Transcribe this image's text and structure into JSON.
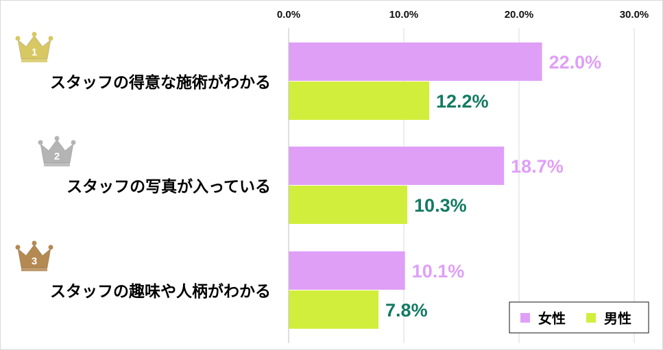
{
  "chart_data": {
    "type": "bar",
    "orientation": "horizontal",
    "categories": [
      "スタッフの得意な施術がわかる",
      "スタッフの写真が入っている",
      "スタッフの趣味や人柄がわかる"
    ],
    "ranks": [
      "1",
      "2",
      "3"
    ],
    "series": [
      {
        "name": "女性",
        "values": [
          22.0,
          18.7,
          10.1
        ],
        "labels": [
          "22.0%",
          "18.7%",
          "10.1%"
        ],
        "color": "#df9ff7",
        "label_color": "#df9ff7"
      },
      {
        "name": "男性",
        "values": [
          12.2,
          10.3,
          7.8
        ],
        "labels": [
          "12.2%",
          "10.3%",
          "7.8%"
        ],
        "color": "#d2ee3c",
        "label_color": "#137a63"
      }
    ],
    "xlim": [
      0,
      30
    ],
    "ticks": [
      0,
      10,
      20,
      30
    ],
    "tick_labels": [
      "0.0%",
      "10.0%",
      "20.0%",
      "30.0%"
    ],
    "grid": true,
    "axis_position": "top",
    "legend_position": "bottom-right",
    "crown_colors": [
      "#d8c864",
      "#b4b4b4",
      "#b48a52"
    ],
    "title": "",
    "xlabel": "",
    "ylabel": ""
  }
}
